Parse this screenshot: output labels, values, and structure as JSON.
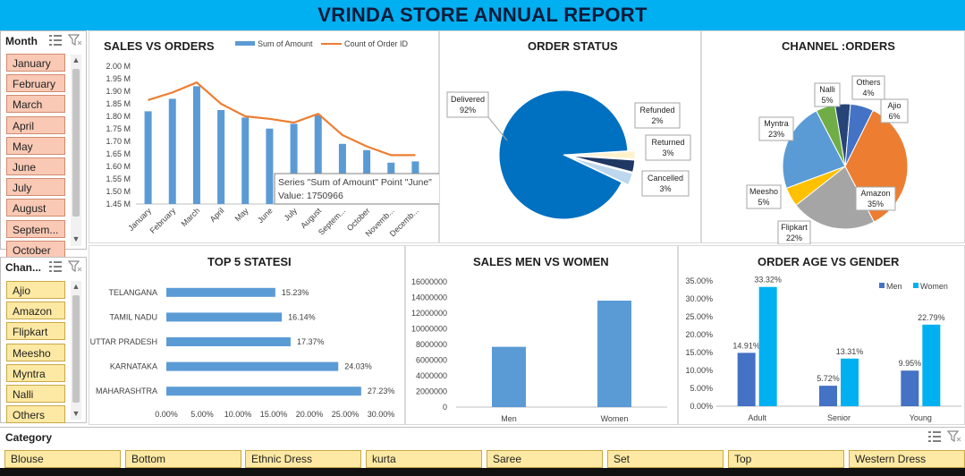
{
  "title": "VRINDA STORE ANNUAL REPORT",
  "colors": {
    "banner": "#00b0f0",
    "bar_blue": "#5b9bd5",
    "line_orange": "#ed7d31",
    "slicer_month": "#f9c9b5",
    "slicer_channel": "#fde9a3"
  },
  "month_slicer": {
    "header": "Month",
    "items": [
      "January",
      "February",
      "March",
      "April",
      "May",
      "June",
      "July",
      "August",
      "Septem...",
      "October"
    ]
  },
  "channel_slicer": {
    "header": "Chan...",
    "items": [
      "Ajio",
      "Amazon",
      "Flipkart",
      "Meesho",
      "Myntra",
      "Nalli",
      "Others"
    ]
  },
  "category_slicer": {
    "header": "Category",
    "items": [
      "Blouse",
      "Bottom",
      "Ethnic Dress",
      "kurta",
      "Saree",
      "Set",
      "Top",
      "Western Dress"
    ]
  },
  "icons": {
    "multiselect": "multi-select-icon",
    "clear_filter": "clear-filter-icon"
  },
  "chart_data": [
    {
      "type": "bar",
      "title": "SALES VS ORDERS",
      "categories": [
        "January",
        "February",
        "March",
        "April",
        "May",
        "June",
        "July",
        "August",
        "Septem...",
        "October",
        "Novemb...",
        "Decemb..."
      ],
      "series": [
        {
          "name": "Sum of Amount",
          "kind": "bar",
          "values": [
            1.82,
            1.87,
            1.92,
            1.825,
            1.795,
            1.751,
            1.77,
            1.805,
            1.69,
            1.665,
            1.615,
            1.62
          ]
        },
        {
          "name": "Count of Order ID",
          "kind": "line",
          "values": [
            1.865,
            1.895,
            1.935,
            1.85,
            1.8,
            1.79,
            1.775,
            1.81,
            1.725,
            1.68,
            1.645,
            1.645
          ]
        }
      ],
      "y_tick_labels": [
        "2.00 M",
        "1.95 M",
        "1.90 M",
        "1.85 M",
        "1.80 M",
        "1.75 M",
        "1.70 M",
        "1.65 M",
        "1.60 M",
        "1.55 M",
        "1.50 M",
        "1.45 M"
      ],
      "ylim": [
        1.45,
        2.0
      ],
      "legend": "top",
      "tooltip": {
        "line1": "Series \"Sum of Amount\" Point \"June\"",
        "line2": "Value: 1750966"
      }
    },
    {
      "type": "pie",
      "title": "ORDER STATUS",
      "slices": [
        {
          "label": "Delivered",
          "pct_label": "92%",
          "value": 92,
          "color": "#0070c0"
        },
        {
          "label": "Refunded",
          "pct_label": "2%",
          "value": 2,
          "color": "#fff2cc"
        },
        {
          "label": "Returned",
          "pct_label": "3%",
          "value": 3,
          "color": "#1f3864"
        },
        {
          "label": "Cancelled",
          "pct_label": "3%",
          "value": 3,
          "color": "#bdd7ee"
        }
      ]
    },
    {
      "type": "pie",
      "title": "CHANNEL :ORDERS",
      "slices": [
        {
          "label": "Nalli",
          "pct_label": "5%",
          "value": 5,
          "color": "#70ad47"
        },
        {
          "label": "Others",
          "pct_label": "4%",
          "value": 4,
          "color": "#264478"
        },
        {
          "label": "Ajio",
          "pct_label": "6%",
          "value": 6,
          "color": "#4472c4"
        },
        {
          "label": "Amazon",
          "pct_label": "35%",
          "value": 35,
          "color": "#ed7d31"
        },
        {
          "label": "Flipkart",
          "pct_label": "22%",
          "value": 22,
          "color": "#a5a5a5"
        },
        {
          "label": "Meesho",
          "pct_label": "5%",
          "value": 5,
          "color": "#ffc000"
        },
        {
          "label": "Myntra",
          "pct_label": "23%",
          "value": 23,
          "color": "#5b9bd5"
        }
      ]
    },
    {
      "type": "bar",
      "orientation": "horizontal",
      "title": "TOP 5 STATESI",
      "categories": [
        "TELANGANA",
        "TAMIL NADU",
        "UTTAR PRADESH",
        "KARNATAKA",
        "MAHARASHTRA"
      ],
      "values": [
        15.23,
        16.14,
        17.37,
        24.03,
        27.23
      ],
      "value_labels": [
        "15.23%",
        "16.14%",
        "17.37%",
        "24.03%",
        "27.23%"
      ],
      "x_tick_labels": [
        "0.00%",
        "5.00%",
        "10.00%",
        "15.00%",
        "20.00%",
        "25.00%",
        "30.00%"
      ],
      "xlim": [
        0,
        30
      ]
    },
    {
      "type": "bar",
      "title": "SALES MEN VS WOMEN",
      "categories": [
        "Men",
        "Women"
      ],
      "values": [
        7700000,
        13600000
      ],
      "y_tick_labels": [
        "16000000",
        "14000000",
        "12000000",
        "10000000",
        "8000000",
        "6000000",
        "4000000",
        "2000000",
        "0"
      ],
      "ylim": [
        0,
        16000000
      ]
    },
    {
      "type": "bar",
      "title": "ORDER AGE VS GENDER",
      "categories": [
        "Adult",
        "Senior",
        "Young"
      ],
      "series": [
        {
          "name": "Men",
          "color": "#4472c4",
          "values": [
            14.91,
            5.72,
            9.95
          ],
          "labels": [
            "14.91%",
            "5.72%",
            "9.95%"
          ]
        },
        {
          "name": "Women",
          "color": "#00b0f0",
          "values": [
            33.32,
            13.31,
            22.79
          ],
          "labels": [
            "33.32%",
            "13.31%",
            "22.79%"
          ]
        }
      ],
      "y_tick_labels": [
        "35.00%",
        "30.00%",
        "25.00%",
        "20.00%",
        "15.00%",
        "10.00%",
        "5.00%",
        "0.00%"
      ],
      "ylim": [
        0,
        35
      ],
      "legend": "top-right"
    }
  ]
}
